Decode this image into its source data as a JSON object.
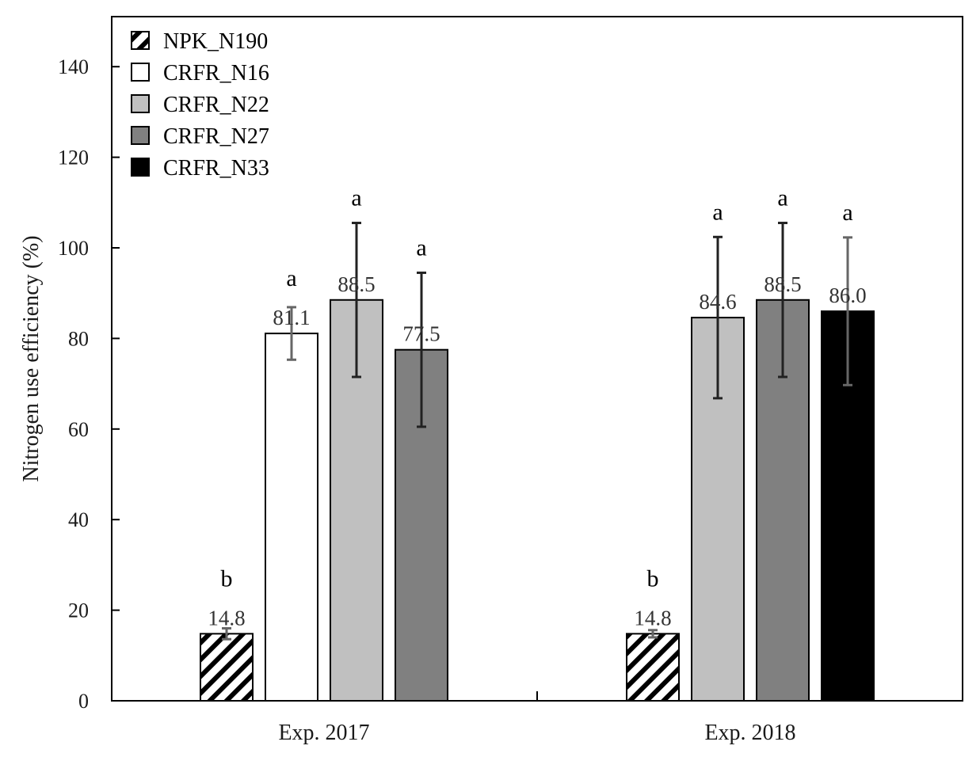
{
  "chart_data": {
    "type": "bar",
    "title": "",
    "xlabel": "",
    "ylabel": "Nitrogen use efficiency (%)",
    "ylim": [
      0,
      140
    ],
    "yticks": [
      0,
      20,
      40,
      60,
      80,
      100,
      120,
      140
    ],
    "grid": false,
    "legend_position": "top-left",
    "categories": [
      "Exp. 2017",
      "Exp. 2018"
    ],
    "series": [
      {
        "name": "NPK_N190",
        "fill": "#ffffff",
        "pattern": "diagonal-hatch",
        "values": [
          14.8,
          14.8
        ],
        "errors": [
          1.2,
          0.8
        ],
        "letters": [
          "b",
          "b"
        ],
        "labels": [
          "14.8",
          "14.8"
        ]
      },
      {
        "name": "CRFR_N16",
        "fill": "#ffffff",
        "values": [
          81.1,
          null
        ],
        "errors": [
          5.8,
          null
        ],
        "letters": [
          "a",
          null
        ],
        "labels": [
          "81.1",
          null
        ]
      },
      {
        "name": "CRFR_N22",
        "fill": "#c0c0c0",
        "values": [
          88.5,
          84.6
        ],
        "errors": [
          17.0,
          17.8
        ],
        "letters": [
          "a",
          "a"
        ],
        "labels": [
          "88.5",
          "84.6"
        ]
      },
      {
        "name": "CRFR_N27",
        "fill": "#808080",
        "values": [
          77.5,
          88.5
        ],
        "errors": [
          17.0,
          17.0
        ],
        "letters": [
          "a",
          "a"
        ],
        "labels": [
          "77.5",
          "88.5"
        ]
      },
      {
        "name": "CRFR_N33",
        "fill": "#000000",
        "values": [
          null,
          86.0
        ],
        "errors": [
          null,
          16.3
        ],
        "letters": [
          null,
          "a"
        ],
        "labels": [
          null,
          "86.0"
        ]
      }
    ]
  }
}
